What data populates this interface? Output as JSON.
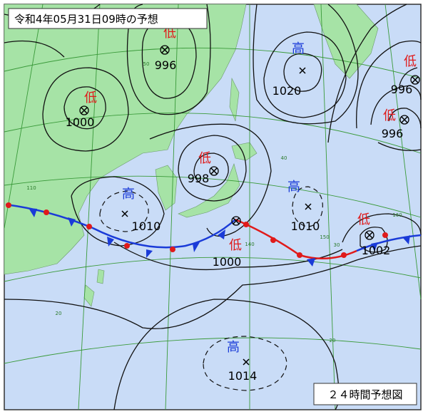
{
  "header": {
    "title": "令和4年05月31日09時の予想"
  },
  "footer": {
    "label": "２４時間予想図"
  },
  "systems": [
    {
      "kind": "低",
      "pressure": "996"
    },
    {
      "kind": "高",
      "pressure": "1020"
    },
    {
      "kind": "低",
      "pressure": "996"
    },
    {
      "kind": "低",
      "pressure": "996"
    },
    {
      "kind": "低",
      "pressure": "1000"
    },
    {
      "kind": "低",
      "pressure": "998"
    },
    {
      "kind": "高",
      "pressure": "1010"
    },
    {
      "kind": "高",
      "pressure": "1010"
    },
    {
      "kind": "低",
      "pressure": "1000"
    },
    {
      "kind": "低",
      "pressure": "1002"
    },
    {
      "kind": "高",
      "pressure": "1014"
    }
  ],
  "grid_labels": [
    "50",
    "40",
    "30",
    "20",
    "20",
    "140",
    "150",
    "160",
    "110"
  ]
}
